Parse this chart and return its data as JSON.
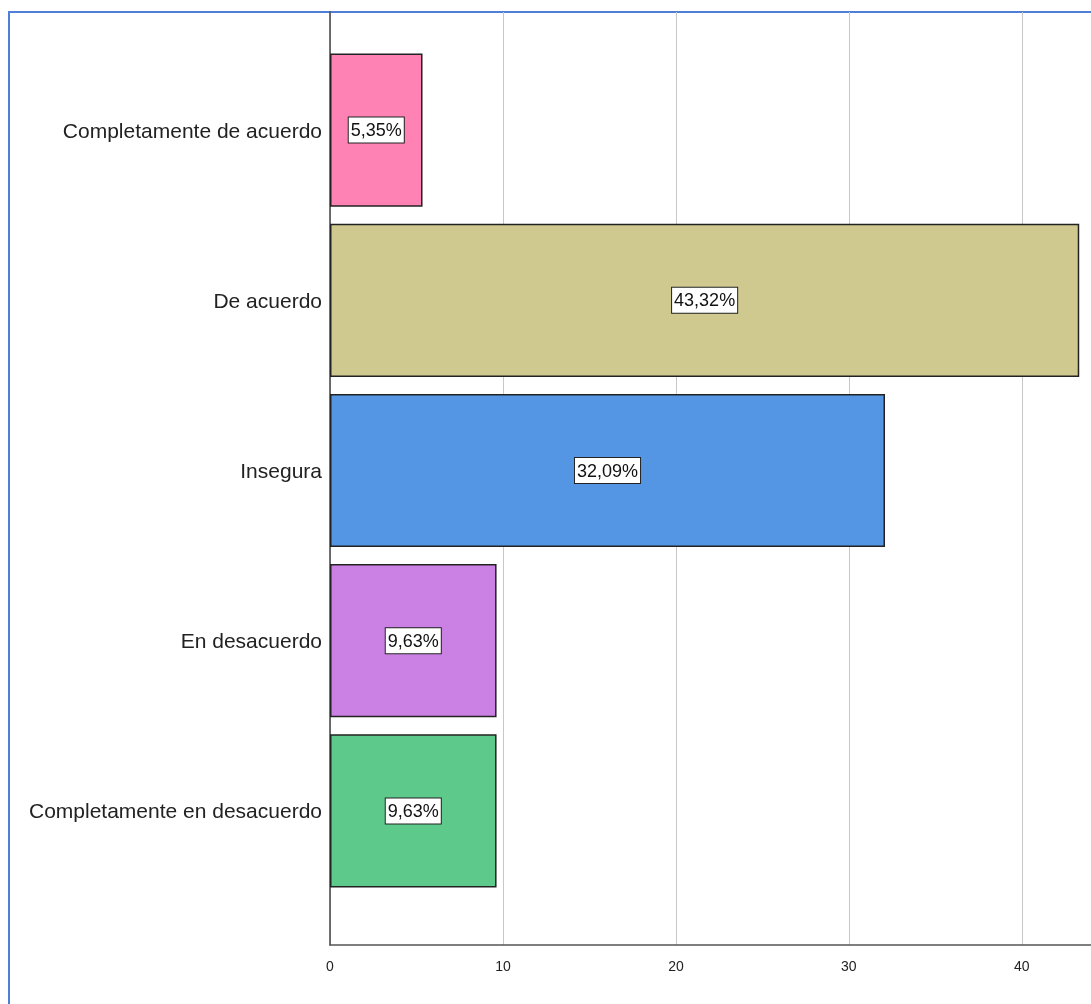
{
  "chart_data": {
    "type": "bar",
    "orientation": "horizontal",
    "categories": [
      "Completamente de acuerdo",
      "De acuerdo",
      "Insegura",
      "En desacuerdo",
      "Completamente en desacuerdo"
    ],
    "values": [
      5.35,
      43.32,
      32.09,
      9.63,
      9.63
    ],
    "colors": [
      "#fe83b4",
      "#cfc98f",
      "#5596e4",
      "#cb81e3",
      "#5dca8b"
    ],
    "value_labels": [
      "5,35%",
      "43,32%",
      "32,09%",
      "9,63%",
      "9,63%"
    ],
    "xlim": [
      0,
      44
    ],
    "xticks": [
      0,
      10,
      20,
      30,
      40
    ],
    "grid": "x"
  }
}
